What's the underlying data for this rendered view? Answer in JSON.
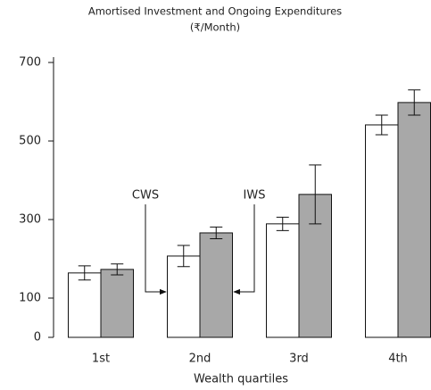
{
  "chart_data": {
    "type": "bar",
    "title": "Amortised Investment and Ongoing Expenditures",
    "subtitle": "(₹/Month)",
    "x_label": "Wealth quartiles",
    "categories": [
      "1st",
      "2nd",
      "3rd",
      "4th"
    ],
    "series": [
      {
        "name": "CWS",
        "color": "#ffffff",
        "values": [
          164,
          207,
          289,
          541
        ],
        "errors": [
          18,
          27,
          17,
          25
        ]
      },
      {
        "name": "IWS",
        "color": "#a8a8a8",
        "values": [
          173,
          266,
          364,
          598
        ],
        "errors": [
          14,
          15,
          75,
          32
        ]
      }
    ],
    "ylim": [
      0,
      700
    ],
    "yticks": [
      0,
      100,
      300,
      500,
      700
    ],
    "annotations": [
      {
        "text": "CWS"
      },
      {
        "text": "IWS"
      }
    ]
  }
}
